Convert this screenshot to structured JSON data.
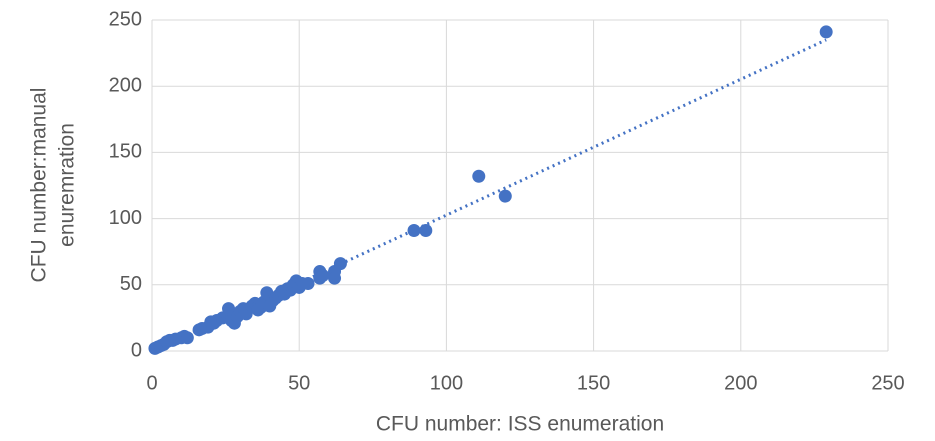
{
  "chart_data": {
    "type": "scatter",
    "x_label": "CFU number: ISS enumeration",
    "y_label": [
      "CFU number:manual",
      "enuremration"
    ],
    "color": "#4472c4",
    "x": [
      1,
      2,
      3,
      4,
      5,
      6,
      7,
      8,
      10,
      11,
      12,
      16,
      17,
      19,
      20,
      21,
      22,
      24,
      26,
      26,
      27,
      28,
      29,
      30,
      31,
      32,
      34,
      35,
      36,
      37,
      38,
      39,
      40,
      41,
      42,
      43,
      44,
      45,
      46,
      47,
      48,
      49,
      50,
      51,
      53,
      57,
      57,
      58,
      62,
      62,
      64,
      89,
      93,
      111,
      120,
      229
    ],
    "values": [
      2,
      3,
      4,
      5,
      7,
      8,
      8,
      9,
      10,
      11,
      10,
      16,
      17,
      18,
      22,
      21,
      23,
      25,
      32,
      27,
      23,
      21,
      26,
      30,
      32,
      28,
      34,
      36,
      31,
      33,
      37,
      44,
      34,
      38,
      40,
      42,
      45,
      43,
      47,
      46,
      50,
      53,
      48,
      51,
      51,
      60,
      55,
      57,
      60,
      55,
      66,
      91,
      91,
      132,
      117,
      241
    ],
    "trendline": {
      "x": [
        1,
        229
      ],
      "values": [
        1,
        235
      ],
      "color": "#4472c4"
    },
    "xlim": [
      0,
      250
    ],
    "xticks": [
      0,
      50,
      100,
      150,
      200,
      250
    ],
    "ylim": [
      0,
      250
    ],
    "yticks": [
      0,
      50,
      100,
      150,
      200,
      250
    ],
    "grid": true
  }
}
